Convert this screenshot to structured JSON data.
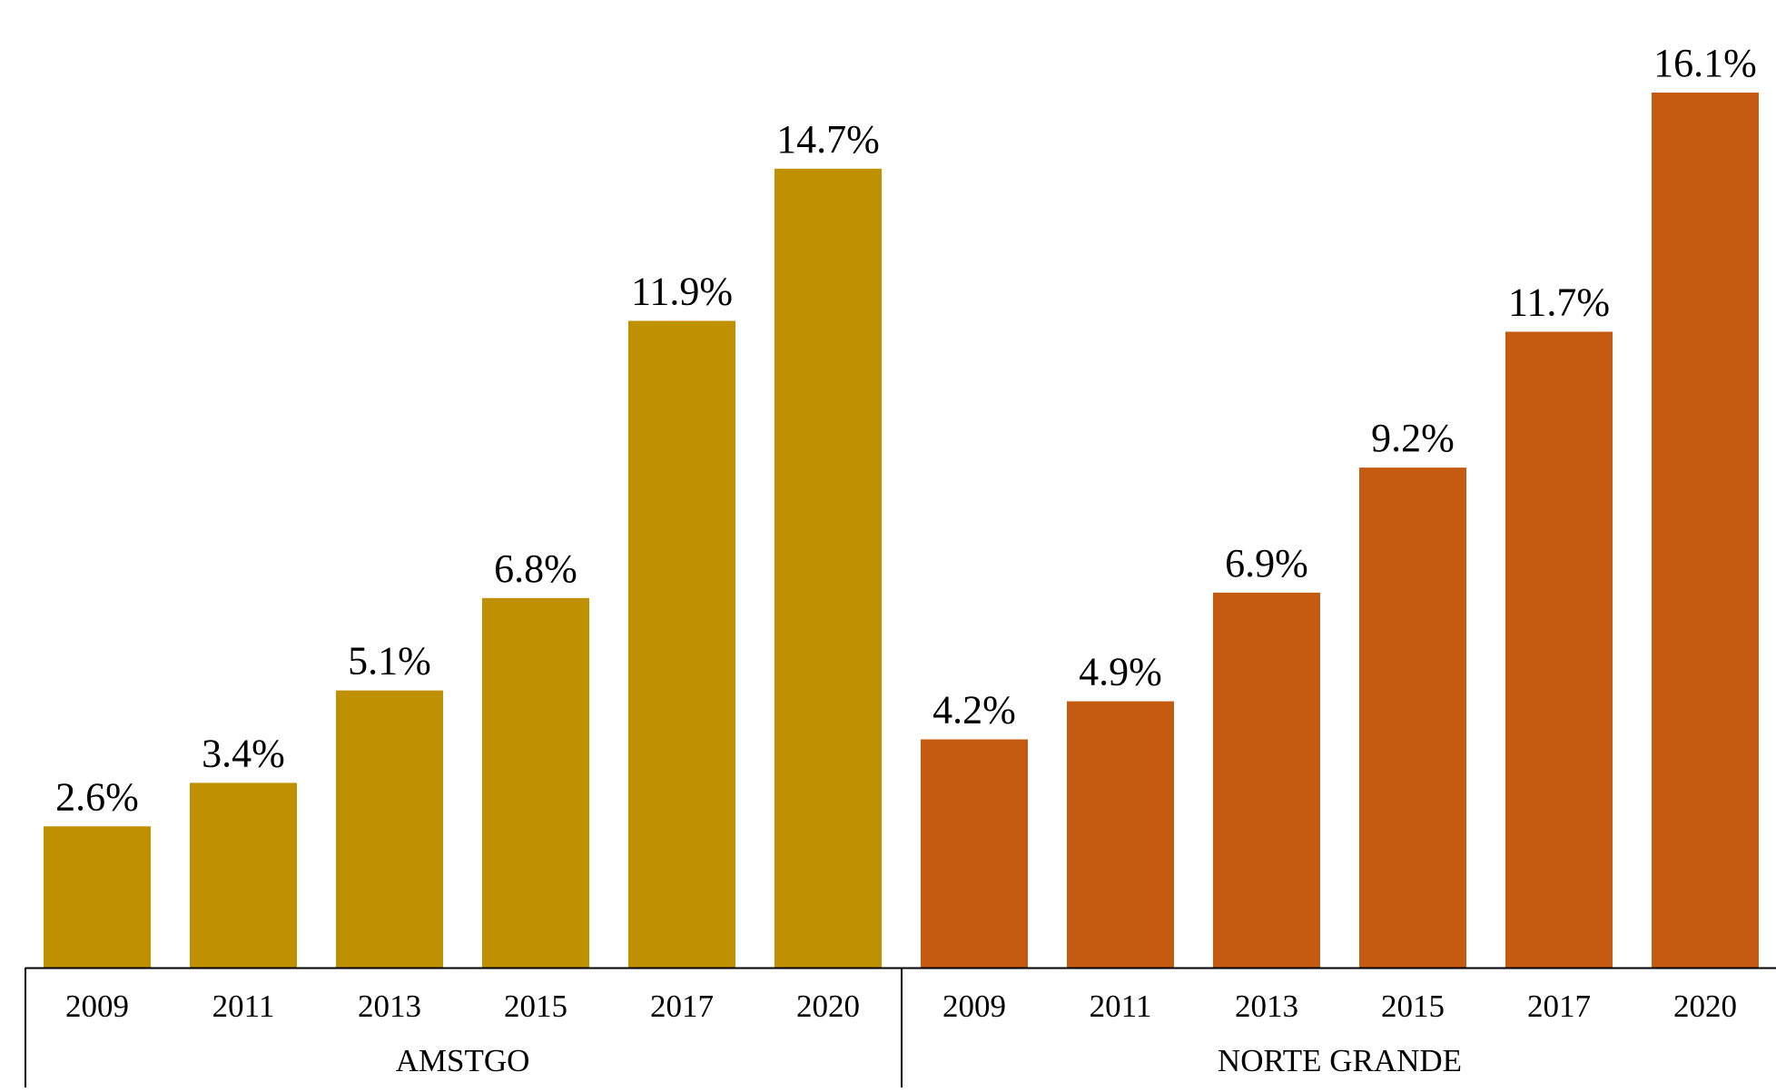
{
  "chart_data": {
    "type": "bar",
    "title": "",
    "xlabel": "",
    "ylabel": "",
    "ylim": [
      0,
      16.1
    ],
    "grid": false,
    "legend": "none",
    "groups": [
      {
        "name": "AMSTGO",
        "color": "#BF9000",
        "categories": [
          "2009",
          "2011",
          "2013",
          "2015",
          "2017",
          "2020"
        ],
        "values": [
          2.6,
          3.4,
          5.1,
          6.8,
          11.9,
          14.7
        ],
        "labels": [
          "2.6%",
          "3.4%",
          "5.1%",
          "6.8%",
          "11.9%",
          "14.7%"
        ]
      },
      {
        "name": "NORTE GRANDE",
        "color": "#C55A11",
        "categories": [
          "2009",
          "2011",
          "2013",
          "2015",
          "2017",
          "2020"
        ],
        "values": [
          4.2,
          4.9,
          6.9,
          9.2,
          11.7,
          16.1
        ],
        "labels": [
          "4.2%",
          "4.9%",
          "6.9%",
          "9.2%",
          "11.7%",
          "16.1%"
        ]
      }
    ]
  }
}
